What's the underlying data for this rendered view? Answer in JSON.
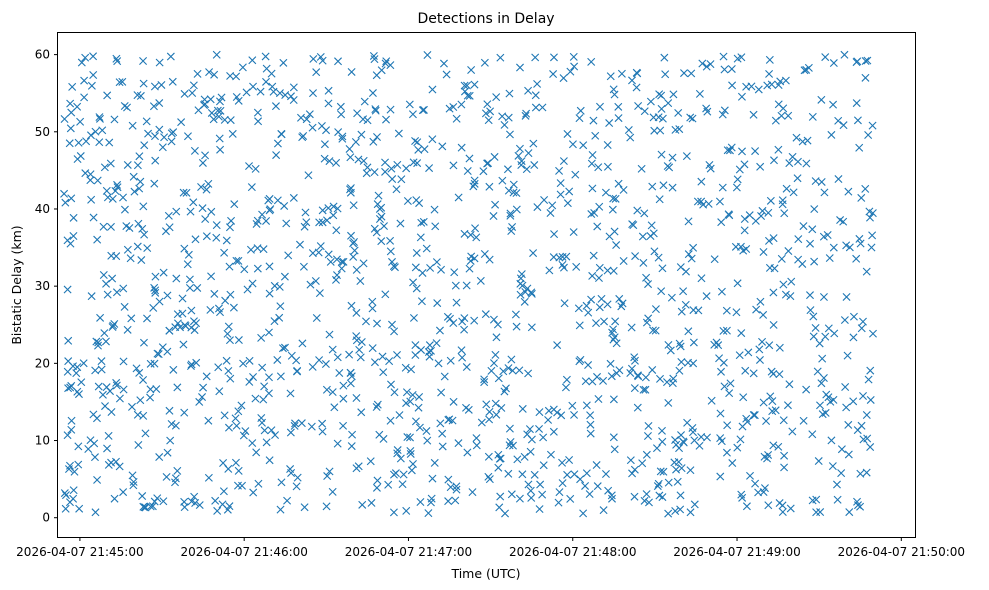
{
  "chart_data": {
    "type": "scatter",
    "title": "Detections in Delay",
    "xlabel": "Time (UTC)",
    "ylabel": "Bistatic Delay (km)",
    "x_tick_labels": [
      "2026-04-07 21:45:00",
      "2026-04-07 21:46:00",
      "2026-04-07 21:47:00",
      "2026-04-07 21:48:00",
      "2026-04-07 21:49:00",
      "2026-04-07 21:50:00"
    ],
    "x_tick_seconds": [
      0,
      60,
      120,
      180,
      240,
      300
    ],
    "xlim_seconds_from_21_45_00": [
      -8,
      305
    ],
    "y_ticks": [
      0,
      10,
      20,
      30,
      40,
      50,
      60
    ],
    "ylim": [
      -2.5,
      62.8
    ],
    "x_data_range_seconds": [
      -6,
      290
    ],
    "y_data_range": [
      0.5,
      60
    ],
    "marker": "x",
    "series": [
      {
        "name": "Detections",
        "color": "#1f77b4",
        "count": 1500,
        "note": "dense uniform scatter of detections over time range ~21:44:54 to ~21:49:50 and delay range ~0.5 to ~60 km"
      }
    ]
  }
}
